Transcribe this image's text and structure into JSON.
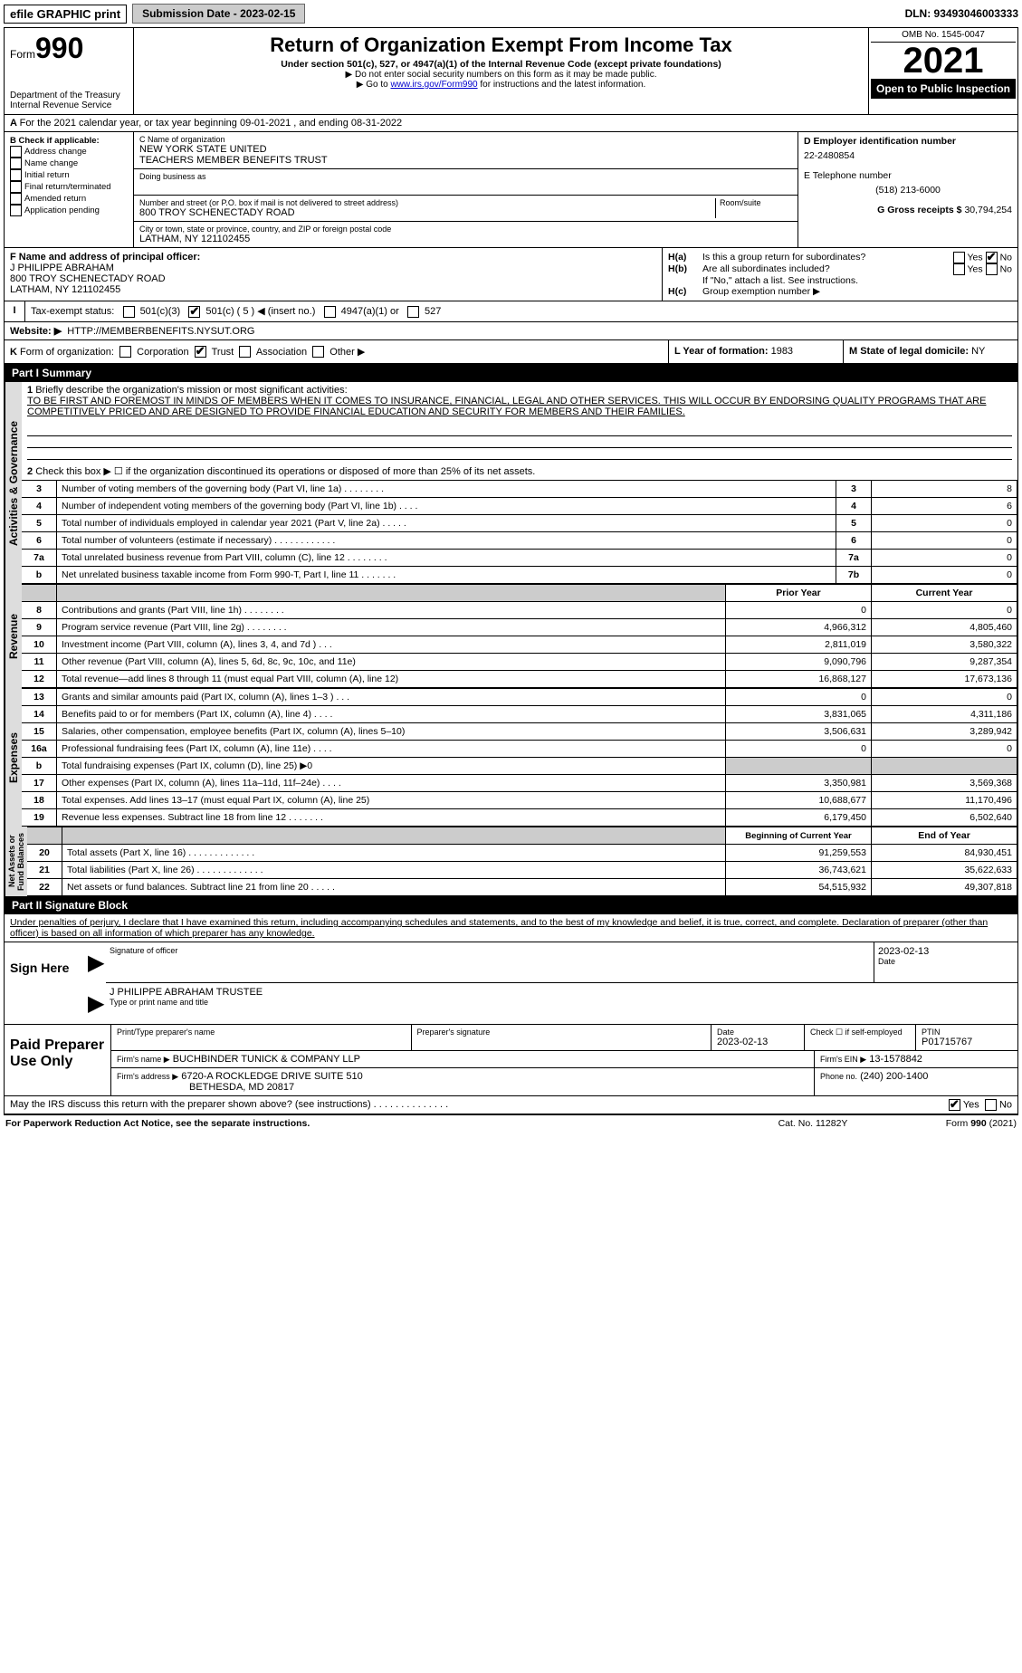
{
  "topbar": {
    "efile": "efile GRAPHIC print",
    "submission": "Submission Date - 2023-02-15",
    "dln": "DLN: 93493046003333"
  },
  "header": {
    "form_label": "Form",
    "form_no": "990",
    "dept": "Department of the Treasury",
    "irs": "Internal Revenue Service",
    "title": "Return of Organization Exempt From Income Tax",
    "subtitle": "Under section 501(c), 527, or 4947(a)(1) of the Internal Revenue Code (except private foundations)",
    "note1": "▶ Do not enter social security numbers on this form as it may be made public.",
    "note2_pre": "▶ Go to ",
    "note2_link": "www.irs.gov/Form990",
    "note2_post": " for instructions and the latest information.",
    "omb": "OMB No. 1545-0047",
    "year": "2021",
    "inspect": "Open to Public Inspection"
  },
  "A": {
    "text": "For the 2021 calendar year, or tax year beginning 09-01-2021    , and ending 08-31-2022"
  },
  "B": {
    "label": "B Check if applicable:",
    "items": [
      "Address change",
      "Name change",
      "Initial return",
      "Final return/terminated",
      "Amended return",
      "Application pending"
    ]
  },
  "C": {
    "name_label": "C Name of organization",
    "name": "NEW YORK STATE UNITED\nTEACHERS MEMBER BENEFITS TRUST",
    "dba_label": "Doing business as",
    "street_label": "Number and street (or P.O. box if mail is not delivered to street address)",
    "room_label": "Room/suite",
    "street": "800 TROY SCHENECTADY ROAD",
    "city_label": "City or town, state or province, country, and ZIP or foreign postal code",
    "city": "LATHAM, NY  121102455"
  },
  "D": {
    "label": "D Employer identification number",
    "val": "22-2480854"
  },
  "E": {
    "label": "E Telephone number",
    "val": "(518) 213-6000"
  },
  "G": {
    "label": "G Gross receipts $",
    "val": "30,794,254"
  },
  "F": {
    "label": "F  Name and address of principal officer:",
    "name": "J PHILIPPE ABRAHAM",
    "street": "800 TROY SCHENECTADY ROAD",
    "city": "LATHAM, NY  121102455"
  },
  "H": {
    "a": "Is this a group return for subordinates?",
    "b": "Are all subordinates included?",
    "b2": "If \"No,\" attach a list. See instructions.",
    "c": "Group exemption number ▶",
    "yes": "Yes",
    "no": "No"
  },
  "I": {
    "label": "Tax-exempt status:",
    "opts": [
      "501(c)(3)",
      "501(c) ( 5 ) ◀ (insert no.)",
      "4947(a)(1) or",
      "527"
    ]
  },
  "J": {
    "label": "Website: ▶",
    "val": "HTTP://MEMBERBENEFITS.NYSUT.ORG"
  },
  "K": {
    "label": "Form of organization:",
    "opts": [
      "Corporation",
      "Trust",
      "Association",
      "Other ▶"
    ]
  },
  "L": {
    "label": "L Year of formation:",
    "val": "1983"
  },
  "M": {
    "label": "M State of legal domicile:",
    "val": "NY"
  },
  "part1": {
    "title": "Part I    Summary",
    "q1": "Briefly describe the organization's mission or most significant activities:",
    "a1": "TO BE FIRST AND FOREMOST IN MINDS OF MEMBERS WHEN IT COMES TO INSURANCE, FINANCIAL, LEGAL AND OTHER SERVICES. THIS WILL OCCUR BY ENDORSING QUALITY PROGRAMS THAT ARE COMPETITIVELY PRICED AND ARE DESIGNED TO PROVIDE FINANCIAL EDUCATION AND SECURITY FOR MEMBERS AND THEIR FAMILIES.",
    "q2": "Check this box ▶ ☐  if the organization discontinued its operations or disposed of more than 25% of its net assets.",
    "gov_rows": [
      {
        "n": "3",
        "t": "Number of voting members of the governing body (Part VI, line 1a)   .    .    .    .    .    .    .    .",
        "c": "3",
        "v": "8"
      },
      {
        "n": "4",
        "t": "Number of independent voting members of the governing body (Part VI, line 1b)    .    .    .    .",
        "c": "4",
        "v": "6"
      },
      {
        "n": "5",
        "t": "Total number of individuals employed in calendar year 2021 (Part V, line 2a)   .    .    .    .    .",
        "c": "5",
        "v": "0"
      },
      {
        "n": "6",
        "t": "Total number of volunteers (estimate if necessary)    .    .    .    .    .    .    .    .    .    .    .    .",
        "c": "6",
        "v": "0"
      },
      {
        "n": "7a",
        "t": "Total unrelated business revenue from Part VIII, column (C), line 12   .    .    .    .    .    .    .    .",
        "c": "7a",
        "v": "0"
      },
      {
        "n": "b",
        "t": "Net unrelated business taxable income from Form 990-T, Part I, line 11   .    .    .    .    .    .    .",
        "c": "7b",
        "v": "0"
      }
    ],
    "col_prior": "Prior Year",
    "col_curr": "Current Year",
    "rev_rows": [
      {
        "n": "8",
        "t": "Contributions and grants (Part VIII, line 1h)    .    .    .    .    .    .    .    .",
        "p": "0",
        "c": "0"
      },
      {
        "n": "9",
        "t": "Program service revenue (Part VIII, line 2g)    .    .    .    .    .    .    .    .",
        "p": "4,966,312",
        "c": "4,805,460"
      },
      {
        "n": "10",
        "t": "Investment income (Part VIII, column (A), lines 3, 4, and 7d )   .    .    .",
        "p": "2,811,019",
        "c": "3,580,322"
      },
      {
        "n": "11",
        "t": "Other revenue (Part VIII, column (A), lines 5, 6d, 8c, 9c, 10c, and 11e)",
        "p": "9,090,796",
        "c": "9,287,354"
      },
      {
        "n": "12",
        "t": "Total revenue—add lines 8 through 11 (must equal Part VIII, column (A), line 12)",
        "p": "16,868,127",
        "c": "17,673,136"
      }
    ],
    "exp_rows": [
      {
        "n": "13",
        "t": "Grants and similar amounts paid (Part IX, column (A), lines 1–3 )   .    .    .",
        "p": "0",
        "c": "0"
      },
      {
        "n": "14",
        "t": "Benefits paid to or for members (Part IX, column (A), line 4)   .    .    .    .",
        "p": "3,831,065",
        "c": "4,311,186"
      },
      {
        "n": "15",
        "t": "Salaries, other compensation, employee benefits (Part IX, column (A), lines 5–10)",
        "p": "3,506,631",
        "c": "3,289,942"
      },
      {
        "n": "16a",
        "t": "Professional fundraising fees (Part IX, column (A), line 11e)   .    .    .    .",
        "p": "0",
        "c": "0"
      },
      {
        "n": "b",
        "t": "Total fundraising expenses (Part IX, column (D), line 25) ▶0",
        "p": "",
        "c": ""
      },
      {
        "n": "17",
        "t": "Other expenses (Part IX, column (A), lines 11a–11d, 11f–24e)   .    .    .    .",
        "p": "3,350,981",
        "c": "3,569,368"
      },
      {
        "n": "18",
        "t": "Total expenses. Add lines 13–17 (must equal Part IX, column (A), line 25)",
        "p": "10,688,677",
        "c": "11,170,496"
      },
      {
        "n": "19",
        "t": "Revenue less expenses. Subtract line 18 from line 12   .    .    .    .    .    .    .",
        "p": "6,179,450",
        "c": "6,502,640"
      }
    ],
    "col_beg": "Beginning of Current Year",
    "col_end": "End of Year",
    "na_rows": [
      {
        "n": "20",
        "t": "Total assets (Part X, line 16)   .    .    .    .    .    .    .    .    .    .    .    .    .",
        "p": "91,259,553",
        "c": "84,930,451"
      },
      {
        "n": "21",
        "t": "Total liabilities (Part X, line 26)   .    .    .    .    .    .    .    .    .    .    .    .    .",
        "p": "36,743,621",
        "c": "35,622,633"
      },
      {
        "n": "22",
        "t": "Net assets or fund balances. Subtract line 21 from line 20   .    .    .    .    .",
        "p": "54,515,932",
        "c": "49,307,818"
      }
    ]
  },
  "part2": {
    "title": "Part II    Signature Block",
    "decl": "Under penalties of perjury, I declare that I have examined this return, including accompanying schedules and statements, and to the best of my knowledge and belief, it is true, correct, and complete. Declaration of preparer (other than officer) is based on all information of which preparer has any knowledge.",
    "sign_here": "Sign Here",
    "sig_officer": "Signature of officer",
    "sig_date": "2023-02-13",
    "date_label": "Date",
    "officer_name": "J PHILIPPE ABRAHAM  TRUSTEE",
    "type_name": "Type or print name and title",
    "paid": "Paid Preparer Use Only",
    "pp_name_label": "Print/Type preparer's name",
    "pp_sig_label": "Preparer's signature",
    "pp_date_label": "Date",
    "pp_date": "2023-02-13",
    "pp_check": "Check ☐ if self-employed",
    "ptin_label": "PTIN",
    "ptin": "P01715767",
    "firm_name_label": "Firm's name    ▶",
    "firm_name": "BUCHBINDER TUNICK & COMPANY LLP",
    "firm_ein_label": "Firm's EIN ▶",
    "firm_ein": "13-1578842",
    "firm_addr_label": "Firm's address ▶",
    "firm_addr1": "6720-A ROCKLEDGE DRIVE SUITE 510",
    "firm_addr2": "BETHESDA, MD  20817",
    "phone_label": "Phone no.",
    "phone": "(240) 200-1400",
    "discuss": "May the IRS discuss this return with the preparer shown above? (see instructions)    .    .    .    .    .    .    .    .    .    .    .    .    .    .",
    "yes": "Yes",
    "no": "No"
  },
  "footer": {
    "pra": "For Paperwork Reduction Act Notice, see the separate instructions.",
    "cat": "Cat. No. 11282Y",
    "form": "Form 990 (2021)"
  }
}
